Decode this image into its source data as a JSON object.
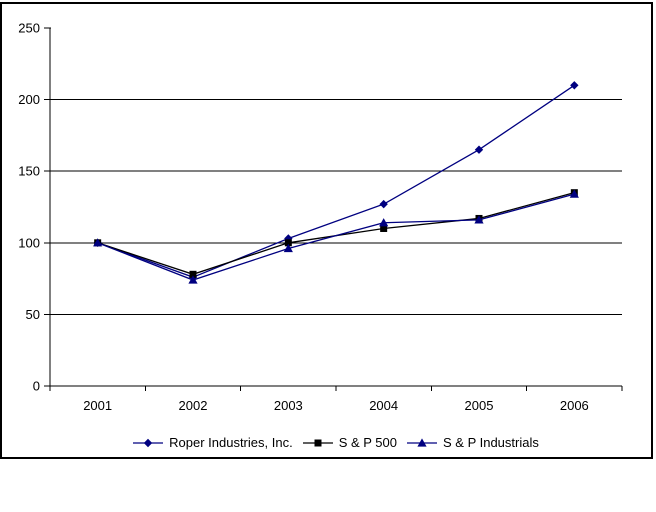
{
  "chart_data": {
    "type": "line",
    "title": "",
    "xlabel": "",
    "ylabel": "",
    "categories": [
      "2001",
      "2002",
      "2003",
      "2004",
      "2005",
      "2006"
    ],
    "series": [
      {
        "name": "Roper Industries, Inc.",
        "marker": "diamond",
        "color": "#000080",
        "values": [
          100,
          76,
          103,
          127,
          165,
          210
        ]
      },
      {
        "name": "S & P 500",
        "marker": "square",
        "color": "#000000",
        "values": [
          100,
          78,
          100,
          110,
          117,
          135
        ]
      },
      {
        "name": "S & P Industrials",
        "marker": "triangle",
        "color": "#000080",
        "values": [
          100,
          74,
          96,
          114,
          116,
          134
        ]
      }
    ],
    "ylim": [
      0,
      250
    ],
    "yticks": [
      0,
      50,
      100,
      150,
      200,
      250
    ],
    "ytick_labels": [
      "0",
      "50",
      "100",
      "150",
      "200",
      "250"
    ],
    "gridlines_at": [
      50,
      100,
      150,
      200
    ],
    "grid": "horizontal",
    "legend_position": "bottom",
    "axis_color": "#000000",
    "gridline_color": "#000000",
    "frame_color": "#000000",
    "background_color": "#ffffff",
    "text_color": "#000000"
  }
}
